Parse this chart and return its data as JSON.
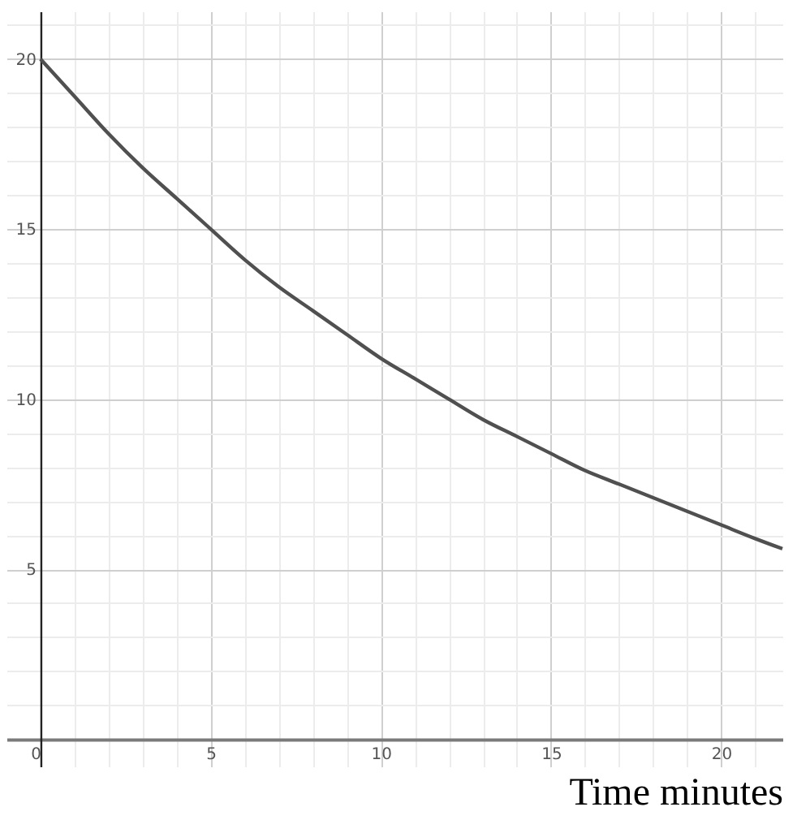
{
  "chart_data": {
    "type": "line",
    "xlabel": "Time minutes",
    "x": [
      0,
      1,
      2,
      3,
      4,
      5,
      6,
      7,
      8,
      9,
      10,
      11,
      12,
      13,
      14,
      15,
      16,
      17,
      18,
      19,
      20,
      21,
      21.8
    ],
    "series": [
      {
        "color": "#505050",
        "values": [
          20,
          18.9,
          17.8,
          16.8,
          15.9,
          15,
          14.1,
          13.3,
          12.6,
          11.9,
          11.2,
          10.6,
          10,
          9.4,
          8.9,
          8.4,
          7.9,
          7.5,
          7.1,
          6.7,
          6.3,
          5.9,
          5.6
        ]
      }
    ],
    "xlim": [
      -1,
      21.8
    ],
    "ylim": [
      -0.8,
      21.4
    ],
    "xticks": [
      0,
      {
        "value": 1,
        "label": null
      },
      {
        "value": 2,
        "label": null
      },
      {
        "value": 3,
        "label": null
      },
      {
        "value": 4,
        "label": null
      },
      5,
      {
        "value": 6,
        "label": null
      },
      {
        "value": 7,
        "label": null
      },
      {
        "value": 8,
        "label": null
      },
      {
        "value": 9,
        "label": null
      },
      10,
      {
        "value": 11,
        "label": null
      },
      {
        "value": 12,
        "label": null
      },
      {
        "value": 13,
        "label": null
      },
      {
        "value": 14,
        "label": null
      },
      15,
      {
        "value": 16,
        "label": null
      },
      {
        "value": 17,
        "label": null
      },
      {
        "value": 18,
        "label": null
      },
      {
        "value": 19,
        "label": null
      },
      20,
      {
        "value": 21,
        "label": null
      }
    ],
    "yticks": [
      {
        "value": 0,
        "label": null
      },
      {
        "value": 1,
        "label": null
      },
      {
        "value": 2,
        "label": null
      },
      {
        "value": 3,
        "label": null
      },
      {
        "value": 4,
        "label": null
      },
      5,
      {
        "value": 6,
        "label": null
      },
      {
        "value": 7,
        "label": null
      },
      {
        "value": 8,
        "label": null
      },
      {
        "value": 9,
        "label": null
      },
      10,
      {
        "value": 11,
        "label": null
      },
      {
        "value": 12,
        "label": null
      },
      {
        "value": 13,
        "label": null
      },
      {
        "value": 14,
        "label": null
      },
      15,
      {
        "value": 16,
        "label": null
      },
      {
        "value": 17,
        "label": null
      },
      {
        "value": 18,
        "label": null
      },
      {
        "value": 19,
        "label": null
      },
      20,
      {
        "value": 21,
        "label": null
      }
    ],
    "grid": true,
    "marker": "none",
    "line_style": "solid"
  }
}
